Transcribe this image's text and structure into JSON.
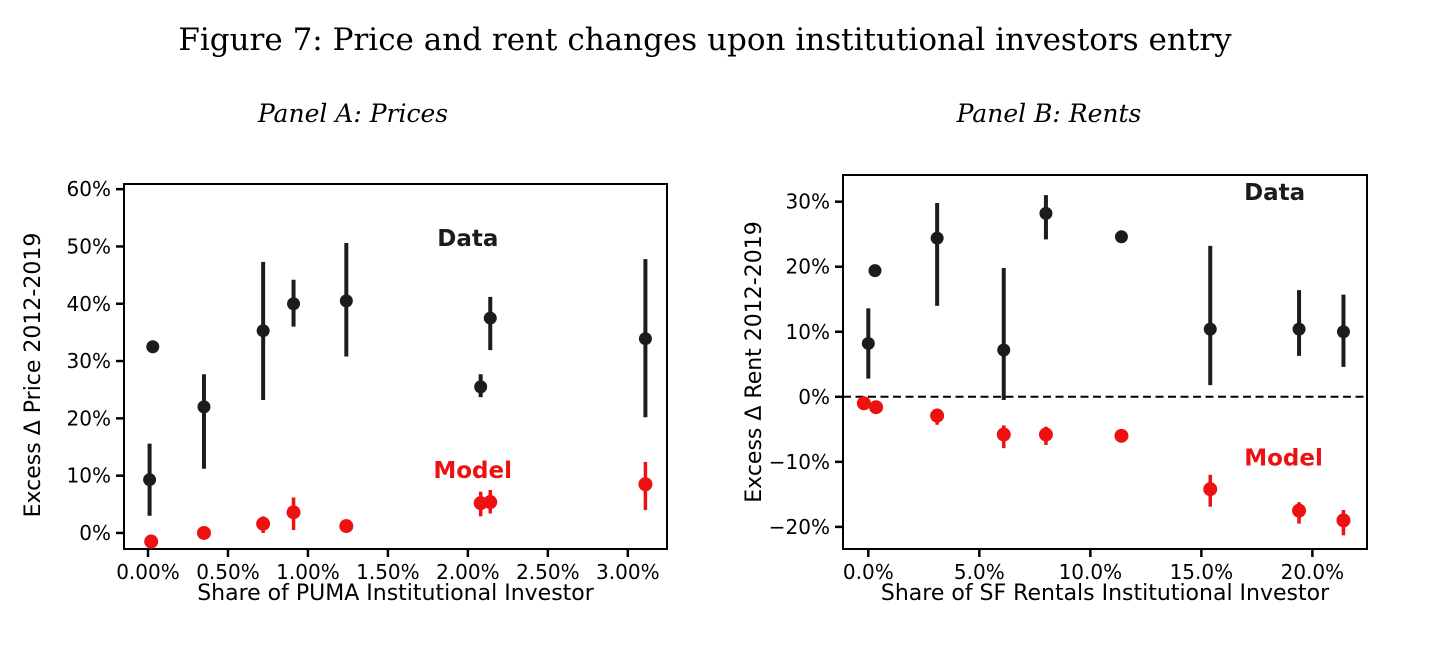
{
  "figure_title": "Figure 7: Price and rent changes upon institutional investors entry",
  "chart_data": [
    {
      "id": "A",
      "type": "scatter",
      "title": "Panel A: Prices",
      "xlabel": "Share of PUMA Institutional Investor",
      "ylabel": "Excess Δ Price 2012-2019",
      "xlim": [
        -0.15,
        3.245
      ],
      "ylim": [
        -2.8,
        60.9
      ],
      "grid": false,
      "zero_line": false,
      "xticks": {
        "values": [
          0,
          0.5,
          1,
          1.5,
          2,
          2.5,
          3
        ],
        "labels": [
          "0.00%",
          "0.50%",
          "1.00%",
          "1.50%",
          "2.00%",
          "2.50%",
          "3.00%"
        ]
      },
      "yticks": {
        "values": [
          0,
          10,
          20,
          30,
          40,
          50,
          60
        ],
        "labels": [
          "0%",
          "10%",
          "20%",
          "30%",
          "40%",
          "50%",
          "60%"
        ]
      },
      "series": [
        {
          "name": "Data",
          "color": "#1c1c1c",
          "points": [
            {
              "x": 0.03,
              "y": 32.5
            },
            {
              "x": 0.01,
              "y": 9.3,
              "lo": 3.0,
              "hi": 15.6
            },
            {
              "x": 0.35,
              "y": 22.0,
              "lo": 11.2,
              "hi": 27.7
            },
            {
              "x": 0.72,
              "y": 35.3,
              "lo": 23.2,
              "hi": 47.3
            },
            {
              "x": 0.91,
              "y": 40.0,
              "lo": 36.0,
              "hi": 44.2
            },
            {
              "x": 1.24,
              "y": 40.5,
              "lo": 30.8,
              "hi": 50.6
            },
            {
              "x": 2.08,
              "y": 25.5,
              "lo": 23.7,
              "hi": 27.7
            },
            {
              "x": 2.14,
              "y": 37.5,
              "lo": 31.9,
              "hi": 41.2
            },
            {
              "x": 3.11,
              "y": 33.9,
              "lo": 20.2,
              "hi": 47.8
            }
          ]
        },
        {
          "name": "Model",
          "color": "#ee1111",
          "points": [
            {
              "x": 0.02,
              "y": -1.5
            },
            {
              "x": 0.35,
              "y": 0.0
            },
            {
              "x": 0.72,
              "y": 1.6,
              "lo": 0.0,
              "hi": 2.9
            },
            {
              "x": 0.91,
              "y": 3.6,
              "lo": 0.5,
              "hi": 6.2
            },
            {
              "x": 1.24,
              "y": 1.2
            },
            {
              "x": 2.08,
              "y": 5.2,
              "lo": 2.9,
              "hi": 7.2
            },
            {
              "x": 2.14,
              "y": 5.4,
              "lo": 3.4,
              "hi": 7.5
            },
            {
              "x": 3.11,
              "y": 8.5,
              "lo": 4.0,
              "hi": 12.4
            }
          ]
        }
      ],
      "annotations": [
        {
          "label": "Data",
          "x": 2.0,
          "y": 51.5,
          "color": "#1c1c1c"
        },
        {
          "label": "Model",
          "x": 2.03,
          "y": 11.0,
          "color": "#ee1111"
        }
      ]
    },
    {
      "id": "B",
      "type": "scatter",
      "title": "Panel B: Rents",
      "xlabel": "Share of SF Rentals Institutional Investor",
      "ylabel": "Excess Δ Rent 2012-2019",
      "xlim": [
        -1.14,
        22.46
      ],
      "ylim": [
        -23.4,
        34.1
      ],
      "grid": false,
      "zero_line": true,
      "xticks": {
        "values": [
          0,
          5,
          10,
          15,
          20
        ],
        "labels": [
          "0.0%",
          "5.0%",
          "10.0%",
          "15.0%",
          "20.0%"
        ]
      },
      "yticks": {
        "values": [
          -20,
          -10,
          0,
          10,
          20,
          30
        ],
        "labels": [
          "−20%",
          "−10%",
          "0%",
          "10%",
          "20%",
          "30%"
        ]
      },
      "series": [
        {
          "name": "Data",
          "color": "#1c1c1c",
          "points": [
            {
              "x": 0.0,
              "y": 8.2,
              "lo": 2.8,
              "hi": 13.6
            },
            {
              "x": 0.3,
              "y": 19.4
            },
            {
              "x": 3.1,
              "y": 24.4,
              "lo": 14.0,
              "hi": 29.8
            },
            {
              "x": 6.1,
              "y": 7.2,
              "lo": -0.5,
              "hi": 19.8
            },
            {
              "x": 8.0,
              "y": 28.2,
              "lo": 24.2,
              "hi": 31.0
            },
            {
              "x": 11.4,
              "y": 24.6
            },
            {
              "x": 15.4,
              "y": 10.4,
              "lo": 1.8,
              "hi": 23.2
            },
            {
              "x": 19.4,
              "y": 10.4,
              "lo": 6.3,
              "hi": 16.4
            },
            {
              "x": 21.4,
              "y": 10.0,
              "lo": 4.6,
              "hi": 15.7
            }
          ]
        },
        {
          "name": "Model",
          "color": "#ee1111",
          "points": [
            {
              "x": -0.2,
              "y": -1.0
            },
            {
              "x": 0.35,
              "y": -1.6
            },
            {
              "x": 3.1,
              "y": -2.9,
              "lo": -4.3,
              "hi": -1.8
            },
            {
              "x": 6.1,
              "y": -5.8,
              "lo": -7.9,
              "hi": -4.4
            },
            {
              "x": 8.0,
              "y": -5.8,
              "lo": -7.4,
              "hi": -4.6
            },
            {
              "x": 11.4,
              "y": -6.0
            },
            {
              "x": 15.4,
              "y": -14.2,
              "lo": -16.9,
              "hi": -12.0
            },
            {
              "x": 19.4,
              "y": -17.5,
              "lo": -19.5,
              "hi": -16.2
            },
            {
              "x": 21.4,
              "y": -19.0,
              "lo": -21.3,
              "hi": -17.4
            }
          ]
        }
      ],
      "annotations": [
        {
          "label": "Data",
          "x": 18.3,
          "y": 31.5,
          "color": "#1c1c1c"
        },
        {
          "label": "Model",
          "x": 18.7,
          "y": -9.3,
          "color": "#ee1111"
        }
      ]
    }
  ]
}
